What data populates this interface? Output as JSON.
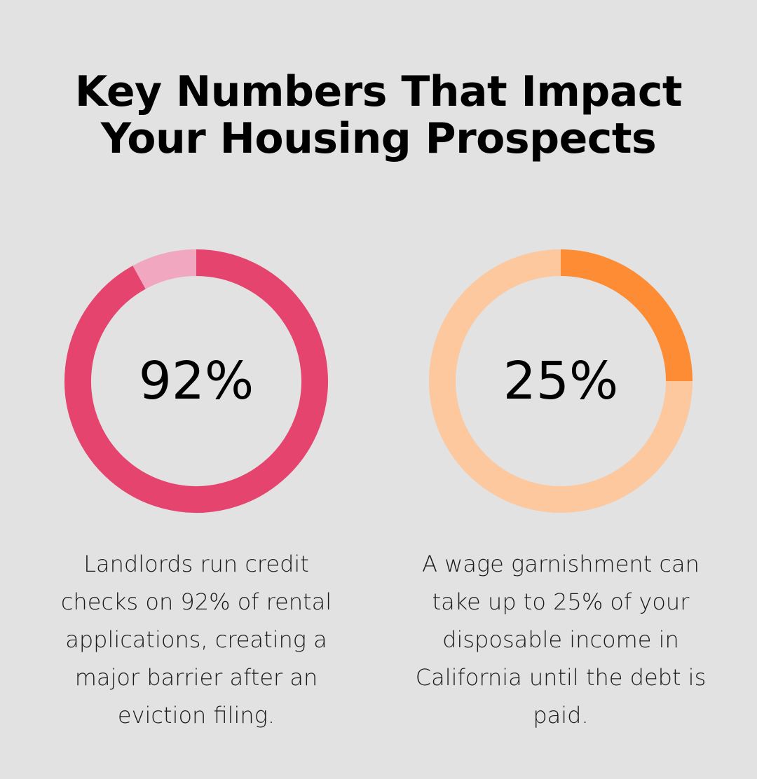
{
  "title_lines": [
    "Key Numbers That Impact",
    "Your Housing Prospects"
  ],
  "chart_data": [
    {
      "type": "pie",
      "value_label": "92%",
      "slices": [
        {
          "value": 92,
          "color": "#e5446f"
        },
        {
          "value": 8,
          "color": "#f0a7bf"
        }
      ],
      "description": "Landlords run credit checks on 92% of rental applications, creating a major barrier after an eviction filing."
    },
    {
      "type": "pie",
      "value_label": "25%",
      "slices": [
        {
          "value": 25,
          "color": "#fd8c34"
        },
        {
          "value": 75,
          "color": "#fdc89e"
        }
      ],
      "description": "A wage garnishment can take up to 25% of your disposable income in California until the debt is paid."
    }
  ]
}
